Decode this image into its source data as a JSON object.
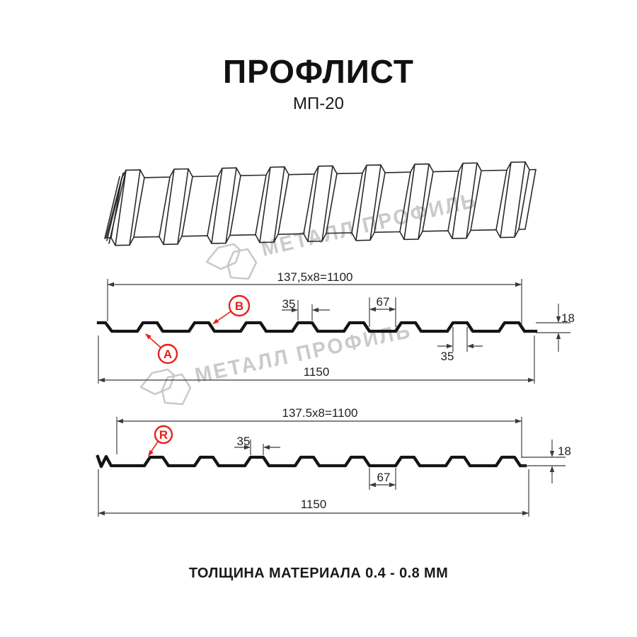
{
  "header": {
    "title": "ПРОФЛИСТ",
    "subtitle": "МП-20"
  },
  "footer": {
    "text": "ТОЛЩИНА МАТЕРИАЛА 0.4 - 0.8 ММ"
  },
  "watermark": {
    "text": "МЕТАЛЛ ПРОФИЛЬ",
    "color": "#cacaca"
  },
  "colors": {
    "line": "#141414",
    "dimension": "#3a3a3a",
    "accent_red": "#e8201a",
    "background": "#ffffff"
  },
  "profile": {
    "name": "МП-20",
    "ribs": 8,
    "pitch_mm": "137,5",
    "height_mm": "18",
    "thickness_range_mm": "0.4 - 0.8"
  },
  "section_ab": {
    "coverage_label": "137,5x8=1100",
    "overall_label": "1150",
    "crest_width_label": "35",
    "valley_width_label": "67",
    "height_label": "18",
    "crest_width_label_2": "35",
    "marker_a": "A",
    "marker_b": "B"
  },
  "section_r": {
    "coverage_label": "137.5x8=1100",
    "overall_label": "1150",
    "crest_width_label": "35",
    "valley_width_label": "67",
    "height_label": "18",
    "marker_r": "R"
  }
}
